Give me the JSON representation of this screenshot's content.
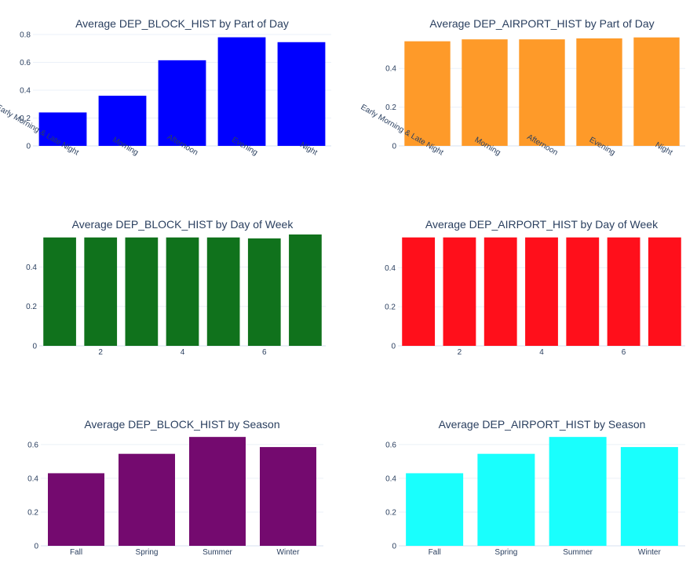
{
  "chart_data": [
    {
      "type": "bar",
      "title": "Average DEP_BLOCK_HIST by Part of Day",
      "categories": [
        "Early Morning & Late Night",
        "Morning",
        "Afternoon",
        "Evening",
        "Night"
      ],
      "values": [
        0.24,
        0.36,
        0.615,
        0.78,
        0.745
      ],
      "color": "#0000ff",
      "ylim": [
        0,
        0.8
      ],
      "yticks": [
        0,
        0.2,
        0.4,
        0.6,
        0.8
      ],
      "ytick_labels": [
        "0",
        "0.2",
        "0.4",
        "0.6",
        "0.8"
      ],
      "x_tick_angle": 30,
      "grid": true
    },
    {
      "type": "bar",
      "title": "Average DEP_AIRPORT_HIST by Part of Day",
      "categories": [
        "Early Morning & Late Night",
        "Morning",
        "Afternoon",
        "Evening",
        "Night"
      ],
      "values": [
        0.54,
        0.55,
        0.55,
        0.555,
        0.56
      ],
      "color": "#fe9a29",
      "ylim": [
        0,
        0.575
      ],
      "yticks": [
        0,
        0.2,
        0.4
      ],
      "ytick_labels": [
        "0",
        "0.2",
        "0.4"
      ],
      "x_tick_angle": 30,
      "grid": true
    },
    {
      "type": "bar",
      "title": "Average DEP_BLOCK_HIST by Day of Week",
      "x": [
        1,
        2,
        3,
        4,
        5,
        6,
        7
      ],
      "values": [
        0.55,
        0.55,
        0.55,
        0.55,
        0.55,
        0.545,
        0.565
      ],
      "color": "#10721c",
      "xlim": [
        0.5,
        7.5
      ],
      "xticks": [
        2,
        4,
        6
      ],
      "xtick_labels": [
        "2",
        "4",
        "6"
      ],
      "ylim": [
        0,
        0.565
      ],
      "yticks": [
        0,
        0.2,
        0.4
      ],
      "ytick_labels": [
        "0",
        "0.2",
        "0.4"
      ],
      "grid": true
    },
    {
      "type": "bar",
      "title": "Average DEP_AIRPORT_HIST by Day of Week",
      "x": [
        1,
        2,
        3,
        4,
        5,
        6,
        7
      ],
      "values": [
        0.555,
        0.555,
        0.555,
        0.555,
        0.555,
        0.555,
        0.555
      ],
      "color": "#ff0f1b",
      "xlim": [
        0.5,
        7.5
      ],
      "xticks": [
        2,
        4,
        6
      ],
      "xtick_labels": [
        "2",
        "4",
        "6"
      ],
      "ylim": [
        0,
        0.57
      ],
      "yticks": [
        0,
        0.2,
        0.4
      ],
      "ytick_labels": [
        "0",
        "0.2",
        "0.4"
      ],
      "grid": true
    },
    {
      "type": "bar",
      "title": "Average DEP_BLOCK_HIST by Season",
      "categories": [
        "Fall",
        "Spring",
        "Summer",
        "Winter"
      ],
      "values": [
        0.43,
        0.545,
        0.645,
        0.585
      ],
      "color": "#740a6f",
      "ylim": [
        0,
        0.655
      ],
      "yticks": [
        0,
        0.2,
        0.4,
        0.6
      ],
      "ytick_labels": [
        "0",
        "0.2",
        "0.4",
        "0.6"
      ],
      "grid": true
    },
    {
      "type": "bar",
      "title": "Average DEP_AIRPORT_HIST by Season",
      "categories": [
        "Fall",
        "Spring",
        "Summer",
        "Winter"
      ],
      "values": [
        0.43,
        0.545,
        0.645,
        0.585
      ],
      "color": "#19fffd",
      "ylim": [
        0,
        0.655
      ],
      "yticks": [
        0,
        0.2,
        0.4,
        0.6
      ],
      "ytick_labels": [
        "0",
        "0.2",
        "0.4",
        "0.6"
      ],
      "grid": true
    }
  ]
}
